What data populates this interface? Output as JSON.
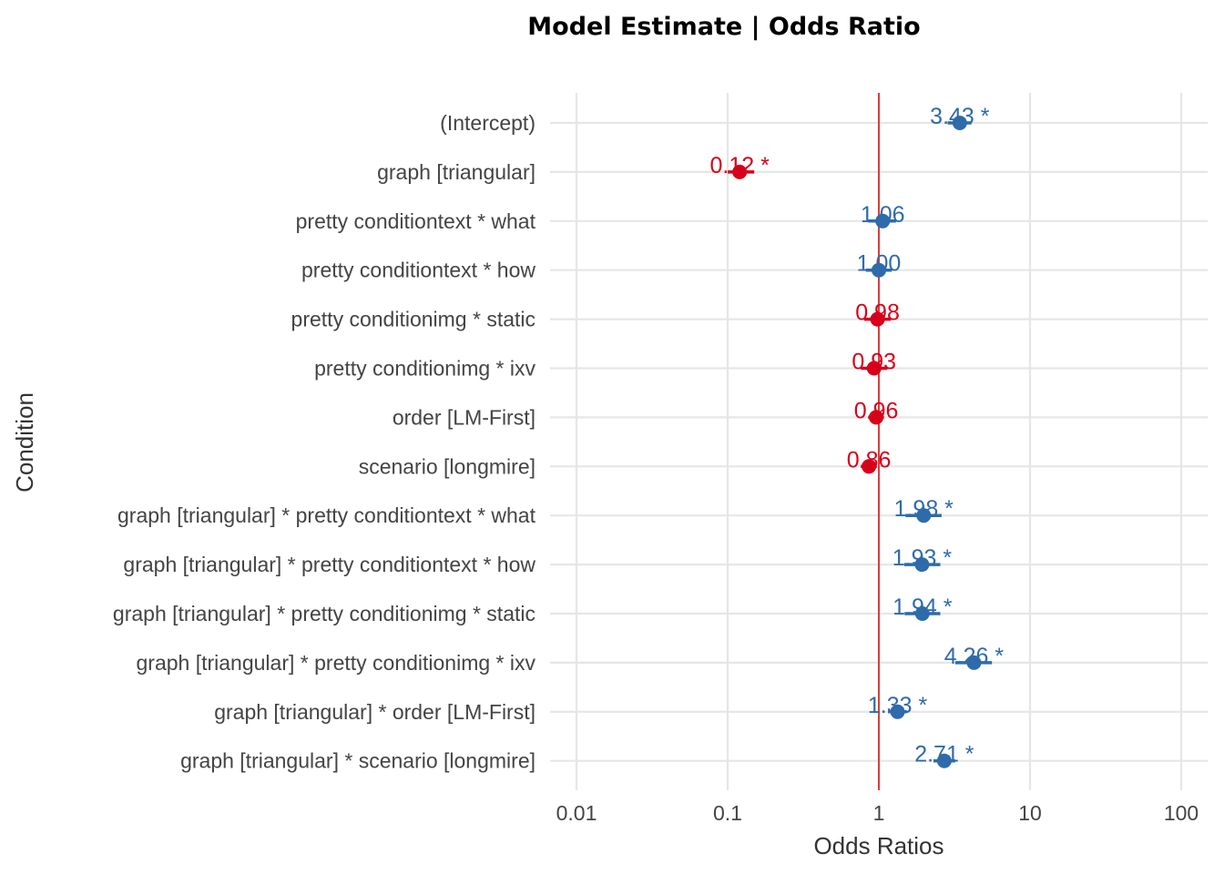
{
  "chart_data": {
    "type": "scatter",
    "subtype": "forest-plot",
    "title": "Model Estimate | Odds Ratio",
    "xlabel": "Odds Ratios",
    "ylabel": "Condition",
    "x_scale": "log10",
    "xlim": [
      0.006,
      150
    ],
    "x_ticks": [
      0.01,
      0.1,
      1,
      10,
      100
    ],
    "x_tick_labels": [
      "0.01",
      "0.1",
      "1",
      "10",
      "100"
    ],
    "reference_line": 1,
    "grid": true,
    "legend": "none",
    "colors": {
      "positive": "#2E6BAA",
      "negative": "#D7001A",
      "reference": "#E03A3A"
    },
    "terms": [
      {
        "label": "(Intercept)",
        "estimate": 3.43,
        "ci_low": 2.85,
        "ci_high": 4.1,
        "data_label": "3.43 *"
      },
      {
        "label": "graph [triangular]",
        "estimate": 0.12,
        "ci_low": 0.1,
        "ci_high": 0.15,
        "data_label": "0.12 *"
      },
      {
        "label": "pretty conditiontext * what",
        "estimate": 1.06,
        "ci_low": 0.85,
        "ci_high": 1.3,
        "data_label": "1.06"
      },
      {
        "label": "pretty conditiontext * how",
        "estimate": 1.0,
        "ci_low": 0.82,
        "ci_high": 1.22,
        "data_label": "1.00"
      },
      {
        "label": "pretty conditionimg * static",
        "estimate": 0.98,
        "ci_low": 0.8,
        "ci_high": 1.2,
        "data_label": "0.98"
      },
      {
        "label": "pretty conditionimg * ixv",
        "estimate": 0.93,
        "ci_low": 0.76,
        "ci_high": 1.14,
        "data_label": "0.93"
      },
      {
        "label": "order [LM-First]",
        "estimate": 0.96,
        "ci_low": 0.85,
        "ci_high": 1.08,
        "data_label": "0.96"
      },
      {
        "label": "scenario [longmire]",
        "estimate": 0.86,
        "ci_low": 0.76,
        "ci_high": 0.97,
        "data_label": "0.86"
      },
      {
        "label": "graph [triangular] * pretty conditiontext * what",
        "estimate": 1.98,
        "ci_low": 1.5,
        "ci_high": 2.6,
        "data_label": "1.98 *"
      },
      {
        "label": "graph [triangular] * pretty conditiontext * how",
        "estimate": 1.93,
        "ci_low": 1.47,
        "ci_high": 2.55,
        "data_label": "1.93 *"
      },
      {
        "label": "graph [triangular] * pretty conditionimg * static",
        "estimate": 1.94,
        "ci_low": 1.48,
        "ci_high": 2.55,
        "data_label": "1.94 *"
      },
      {
        "label": "graph [triangular] * pretty conditionimg * ixv",
        "estimate": 4.26,
        "ci_low": 3.2,
        "ci_high": 5.6,
        "data_label": "4.26 *"
      },
      {
        "label": "graph [triangular] * order [LM-First]",
        "estimate": 1.33,
        "ci_low": 1.15,
        "ci_high": 1.53,
        "data_label": "1.33 *"
      },
      {
        "label": "graph [triangular] * scenario [longmire]",
        "estimate": 2.71,
        "ci_low": 2.3,
        "ci_high": 3.2,
        "data_label": "2.71 *"
      }
    ]
  }
}
